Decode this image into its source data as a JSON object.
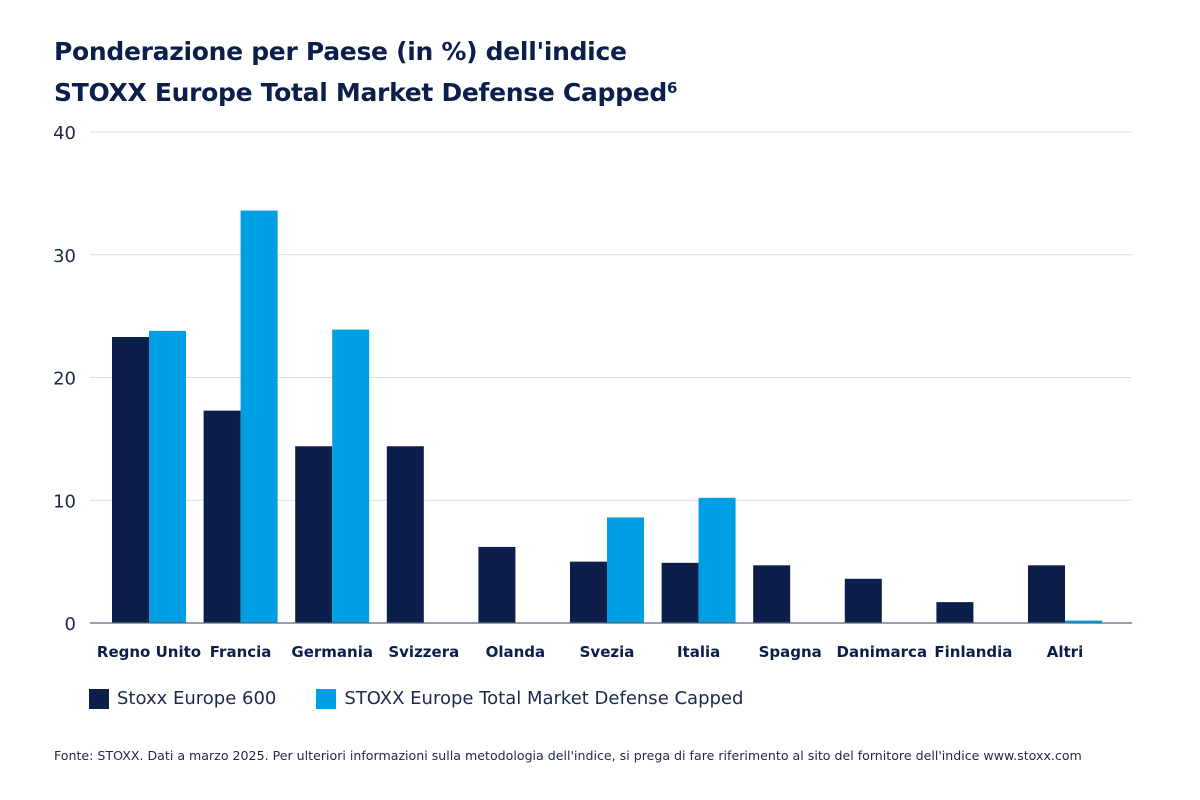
{
  "title_line1": "Ponderazione per Paese (in %) dell'indice",
  "title_line2": "STOXX Europe Total Market Defense Capped",
  "title_footnote": "6",
  "source": "Fonte: STOXX. Dati a marzo 2025. Per ulteriori informazioni sulla metodologia dell'indice, si prega di fare riferimento al sito del fornitore dell'indice www.stoxx.com",
  "chart_data": {
    "type": "bar",
    "categories": [
      "Regno Unito",
      "Francia",
      "Germania",
      "Svizzera",
      "Olanda",
      "Svezia",
      "Italia",
      "Spagna",
      "Danimarca",
      "Finlandia",
      "Altri"
    ],
    "series": [
      {
        "name": "Stoxx Europe 600",
        "color": "#0c1f4b",
        "values": [
          23.3,
          17.3,
          14.4,
          14.4,
          6.2,
          5.0,
          4.9,
          4.7,
          3.6,
          1.7,
          4.7
        ]
      },
      {
        "name": "STOXX Europe Total Market Defense Capped",
        "color": "#009fe3",
        "values": [
          23.8,
          33.6,
          23.9,
          0,
          0,
          8.6,
          10.2,
          0,
          0,
          0,
          0.2
        ]
      }
    ],
    "yticks": [
      0,
      10,
      20,
      30,
      40
    ],
    "ylim": [
      0,
      40
    ],
    "grid": true,
    "legend": "bottom-left"
  }
}
